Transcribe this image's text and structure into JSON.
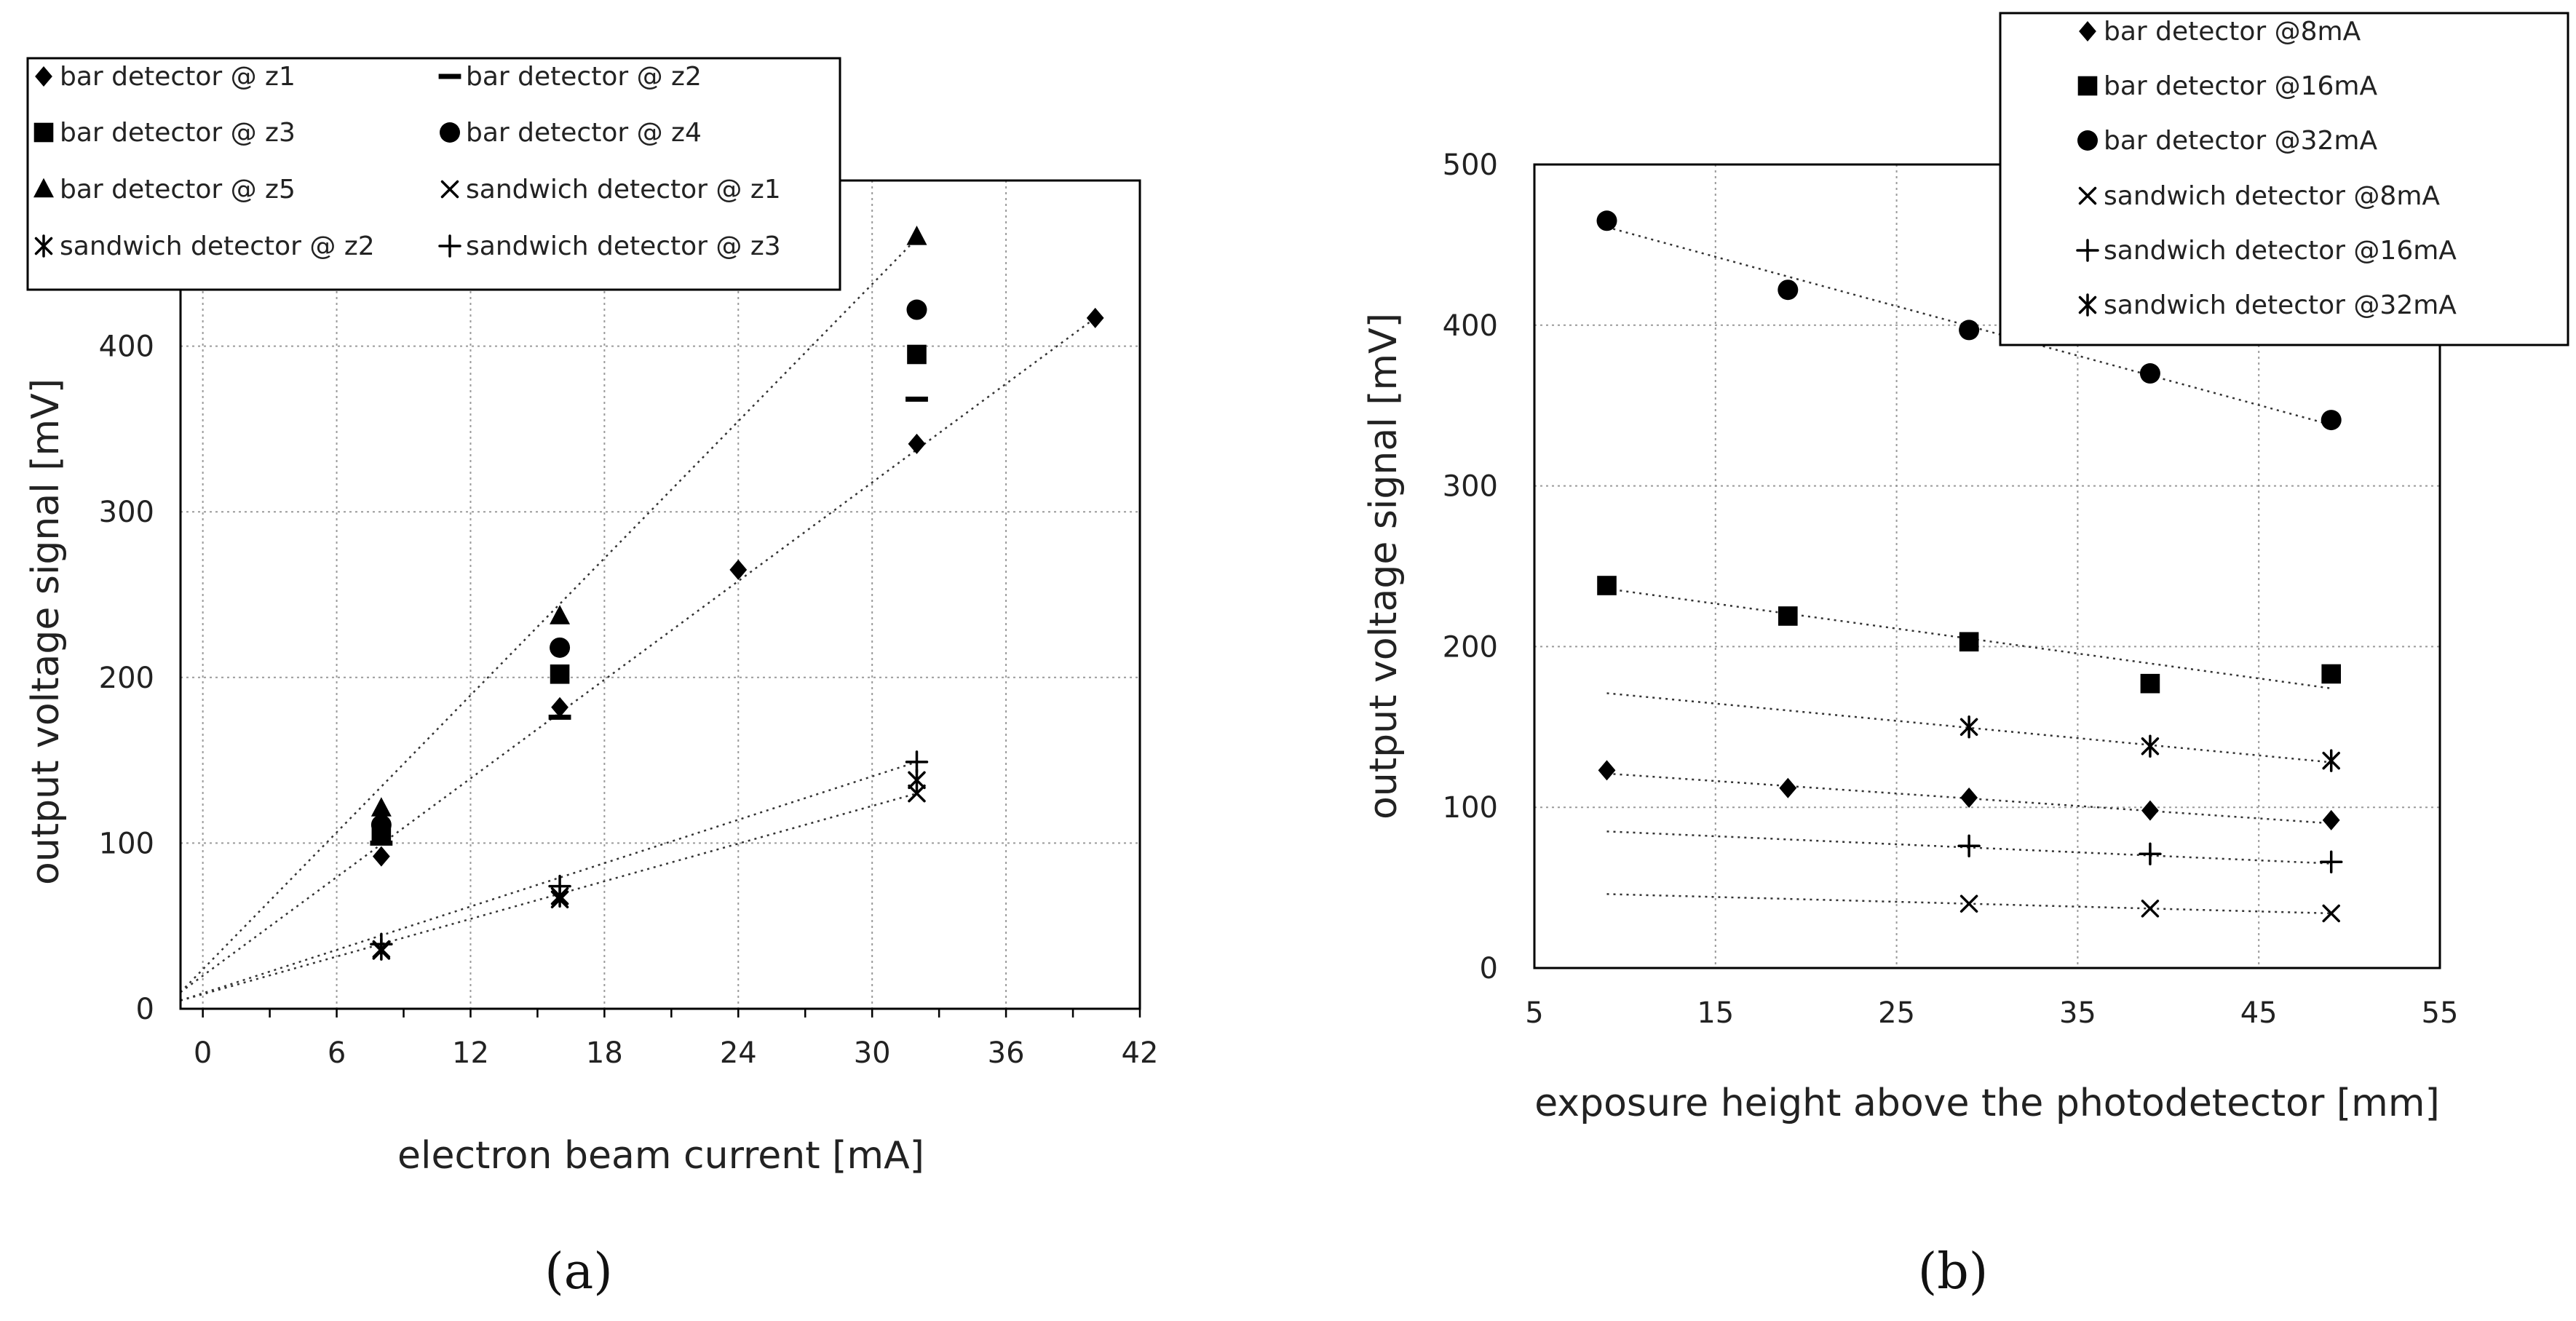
{
  "chart_data": [
    {
      "type": "scatter",
      "panel_label": "(a)",
      "xlabel": "electron beam current [mA]",
      "ylabel": "output voltage signal [mV]",
      "xlim": [
        -1,
        42
      ],
      "ylim": [
        0,
        500
      ],
      "xticks": [
        "0",
        "6",
        "12",
        "18",
        "24",
        "30",
        "36",
        "42"
      ],
      "yticks": [
        "0",
        "100",
        "200",
        "300",
        "400"
      ],
      "grid": true,
      "legend_position": "top-left",
      "series": [
        {
          "name": "bar detector @ z1",
          "marker": "diamond",
          "x": [
            8,
            16,
            24,
            32,
            40
          ],
          "y": [
            92,
            182,
            265,
            341,
            417
          ]
        },
        {
          "name": "bar detector @ z2",
          "marker": "dash",
          "x": [
            8,
            16,
            32
          ],
          "y": [
            100,
            176,
            368
          ]
        },
        {
          "name": "bar detector @ z3",
          "marker": "square",
          "x": [
            8,
            16,
            32
          ],
          "y": [
            105,
            202,
            395
          ]
        },
        {
          "name": "bar detector @ z4",
          "marker": "circle",
          "x": [
            8,
            16,
            32
          ],
          "y": [
            111,
            218,
            422
          ]
        },
        {
          "name": "bar detector @ z5",
          "marker": "triangle",
          "x": [
            8,
            16,
            32
          ],
          "y": [
            121,
            237,
            466
          ]
        },
        {
          "name": "sandwich detector @ z1",
          "marker": "x",
          "x": [
            8,
            16,
            32
          ],
          "y": [
            35,
            66,
            130
          ]
        },
        {
          "name": "sandwich detector @ z2",
          "marker": "asterisk",
          "x": [
            8,
            16,
            32
          ],
          "y": [
            36,
            68,
            138
          ]
        },
        {
          "name": "sandwich detector @ z3",
          "marker": "plus",
          "x": [
            8,
            16,
            32
          ],
          "y": [
            39,
            74,
            149
          ]
        }
      ],
      "trendlines": [
        {
          "from": [
            -1,
            10
          ],
          "to": [
            32,
            465
          ]
        },
        {
          "from": [
            -1,
            10
          ],
          "to": [
            40,
            417
          ]
        },
        {
          "from": [
            -1,
            5
          ],
          "to": [
            32,
            149
          ]
        },
        {
          "from": [
            -1,
            5
          ],
          "to": [
            32,
            130
          ]
        }
      ]
    },
    {
      "type": "scatter",
      "panel_label": "(b)",
      "xlabel": "exposure height above the photodetector [mm]",
      "ylabel": "output voltage signal [mV]",
      "xlim": [
        5,
        55
      ],
      "ylim": [
        0,
        500
      ],
      "xticks": [
        "5",
        "15",
        "25",
        "35",
        "45",
        "55"
      ],
      "yticks": [
        "0",
        "100",
        "200",
        "300",
        "400",
        "500"
      ],
      "grid": true,
      "legend_position": "top-right",
      "series": [
        {
          "name": "bar detector @8mA",
          "marker": "diamond",
          "x": [
            9,
            19,
            29,
            39,
            49
          ],
          "y": [
            123,
            112,
            106,
            98,
            92
          ]
        },
        {
          "name": "bar detector @16mA",
          "marker": "square",
          "x": [
            9,
            19,
            29,
            39,
            49
          ],
          "y": [
            238,
            219,
            203,
            177,
            183
          ]
        },
        {
          "name": "bar detector @32mA",
          "marker": "circle",
          "x": [
            9,
            19,
            29,
            39,
            49
          ],
          "y": [
            465,
            422,
            397,
            370,
            341
          ]
        },
        {
          "name": "sandwich detector @8mA",
          "marker": "x",
          "x": [
            29,
            39,
            49
          ],
          "y": [
            40,
            37,
            34
          ]
        },
        {
          "name": "sandwich detector @16mA",
          "marker": "plus",
          "x": [
            29,
            39,
            49
          ],
          "y": [
            76,
            71,
            66
          ]
        },
        {
          "name": "sandwich detector @32mA",
          "marker": "asterisk",
          "x": [
            29,
            39,
            49
          ],
          "y": [
            150,
            138,
            129
          ]
        }
      ],
      "trendlines": [
        {
          "from": [
            9,
            461
          ],
          "to": [
            49,
            338
          ]
        },
        {
          "from": [
            9,
            236
          ],
          "to": [
            49,
            174
          ]
        },
        {
          "from": [
            9,
            171
          ],
          "to": [
            49,
            128
          ]
        },
        {
          "from": [
            9,
            121
          ],
          "to": [
            49,
            90
          ]
        },
        {
          "from": [
            9,
            85
          ],
          "to": [
            49,
            65
          ]
        },
        {
          "from": [
            9,
            46
          ],
          "to": [
            49,
            34
          ]
        }
      ]
    }
  ]
}
